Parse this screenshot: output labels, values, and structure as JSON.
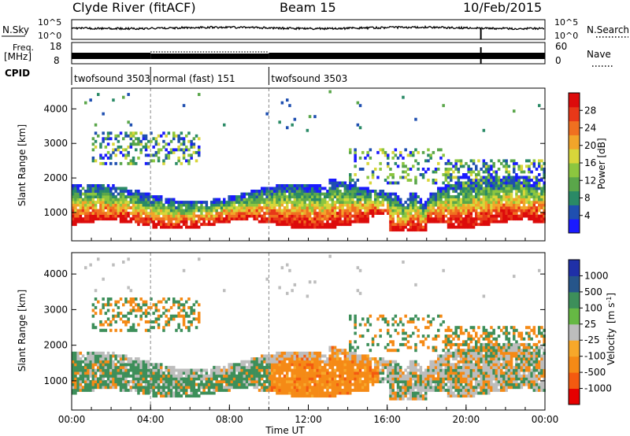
{
  "header": {
    "station": "Clyde River (fitACF)",
    "beam": "Beam 15",
    "date": "10/Feb/2015"
  },
  "strips": {
    "nsky": {
      "label": "N.Sky",
      "ticks": [
        "10^5",
        "10^0"
      ],
      "right_label": "N.Search",
      "right_ticks": [
        "10^5",
        "10^0"
      ]
    },
    "freq": {
      "label_line1": "Freq.",
      "label_line2": "[MHz]",
      "ticks": [
        "18",
        "8"
      ],
      "right_label": "Nave",
      "right_ticks": [
        "60",
        "0"
      ]
    },
    "cpid": {
      "label": "CPID",
      "segments": [
        {
          "name": "twofsound 3503",
          "start_hour": 0.0,
          "end_hour": 4.0
        },
        {
          "name": "normal (fast) 151",
          "start_hour": 4.0,
          "end_hour": 10.0
        },
        {
          "name": "twofsound 3503",
          "start_hour": 10.0,
          "end_hour": 24.0
        }
      ]
    }
  },
  "chart_data": [
    {
      "type": "heatmap",
      "panel": "power",
      "ylabel": "Slant Range [km]",
      "yticks": [
        1000,
        2000,
        3000,
        4000
      ],
      "ylim": [
        180,
        4600
      ],
      "xlim_hours": [
        0,
        24
      ],
      "colorbar": {
        "label": "Power [dB]",
        "ticks": [
          "4",
          "8",
          "12",
          "16",
          "20",
          "24",
          "28"
        ],
        "colors": [
          "#1a1aff",
          "#1f4fb0",
          "#2a8a66",
          "#5aa64a",
          "#8cc63f",
          "#d8d63a",
          "#f2a52a",
          "#f07020",
          "#e83818",
          "#dd0b0b"
        ]
      },
      "dominant_features": [
        {
          "range_km": [
            500,
            1200
          ],
          "hours": [
            0,
            24
          ],
          "power_db": 26
        },
        {
          "range_km": [
            1200,
            2000
          ],
          "hours": [
            0,
            24
          ],
          "power_db": 10
        },
        {
          "range_km": [
            2500,
            3400
          ],
          "hours": [
            1,
            6
          ],
          "power_db": 14
        }
      ]
    },
    {
      "type": "heatmap",
      "panel": "velocity",
      "ylabel": "Slant Range [km]",
      "xlabel": "Time UT",
      "yticks": [
        1000,
        2000,
        3000,
        4000
      ],
      "ylim": [
        180,
        4600
      ],
      "xlim_hours": [
        0,
        24
      ],
      "xticks": [
        "00:00",
        "04:00",
        "08:00",
        "12:00",
        "16:00",
        "20:00",
        "00:00"
      ],
      "colorbar": {
        "label_main": "Velocity",
        "label_unit": "[m s",
        "label_sup": "-1",
        "label_close": "]",
        "ticks": [
          "-1000",
          "-500",
          "-100",
          "-25",
          "25",
          "100",
          "500",
          "1000"
        ],
        "colors": [
          "#e60000",
          "#f45a10",
          "#f58a16",
          "#f7a82a",
          "#bdbdbd",
          "#66b844",
          "#3d8f5a",
          "#26558a",
          "#1f30a8"
        ]
      },
      "dominant_features": [
        {
          "range_km": [
            500,
            1700
          ],
          "hours": [
            0,
            10
          ],
          "velocity_ms": 200
        },
        {
          "range_km": [
            500,
            1800
          ],
          "hours": [
            10,
            16
          ],
          "velocity_ms": -150
        },
        {
          "range_km": [
            1500,
            2400
          ],
          "hours": [
            14,
            24
          ],
          "velocity_ms": 20
        }
      ]
    }
  ]
}
